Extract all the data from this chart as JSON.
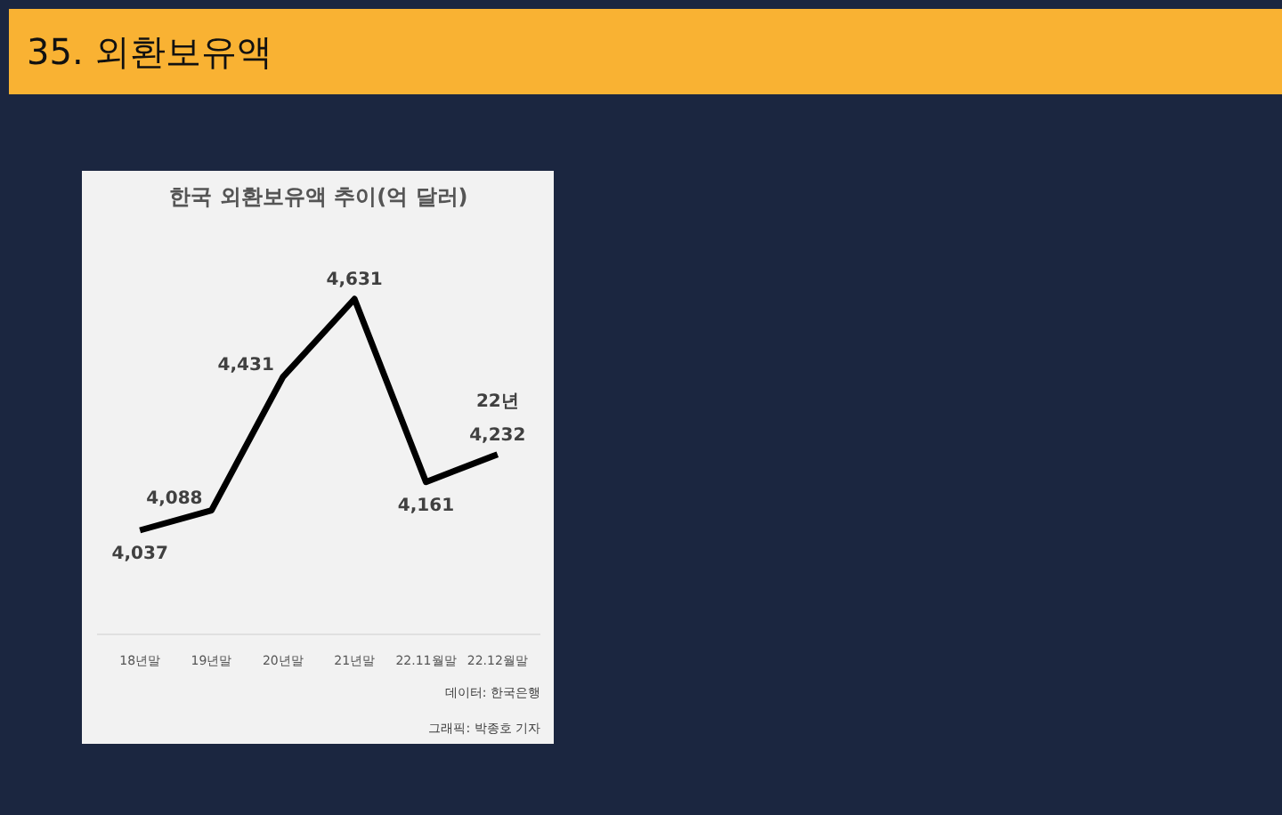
{
  "chart_data": {
    "type": "line",
    "title": "35. 외환보유액",
    "subtitle": "한국 외환보유액 추이(억 달러)",
    "categories": [
      "18년말",
      "19년말",
      "20년말",
      "21년말",
      "22.11월말",
      "22.12월말"
    ],
    "series": [
      {
        "color": "#000000",
        "values": [
          4037,
          4088,
          4431,
          4631,
          4161,
          4232
        ],
        "value_labels": [
          "4,037",
          "4,088",
          "4,431",
          "4,631",
          "4,161",
          "4,232"
        ]
      }
    ],
    "grid": false,
    "marker": "none",
    "line_style": "solid",
    "annotations": [
      {
        "text": "22년",
        "x": "22.12월말",
        "y": 4232
      },
      "그래픽: 박종호 기자",
      "데이터: 한국은행"
    ]
  }
}
